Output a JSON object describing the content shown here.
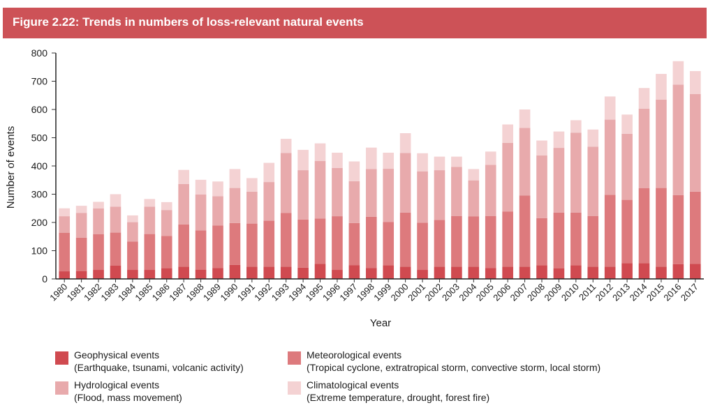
{
  "header": {
    "title": "Figure 2.22: Trends in numbers of loss-relevant natural events"
  },
  "colors": {
    "header": "#cd5257",
    "geophysical": "#d04a50",
    "meteorological": "#dd7a7d",
    "hydrological": "#e8aaac",
    "climatological": "#f4d2d3"
  },
  "chart_data": {
    "type": "bar",
    "stacked": true,
    "xlabel": "Year",
    "ylabel": "Number of events",
    "ylim": [
      0,
      800
    ],
    "yticks": [
      0,
      100,
      200,
      300,
      400,
      500,
      600,
      700,
      800
    ],
    "categories": [
      "1980",
      "1981",
      "1982",
      "1983",
      "1984",
      "1985",
      "1986",
      "1987",
      "1988",
      "1989",
      "1990",
      "1991",
      "1992",
      "1993",
      "1994",
      "1995",
      "1996",
      "1997",
      "1998",
      "1999",
      "2000",
      "2001",
      "2002",
      "2003",
      "2004",
      "2005",
      "2006",
      "2007",
      "2008",
      "2009",
      "2010",
      "2011",
      "2012",
      "2013",
      "2014",
      "2015",
      "2016",
      "2017"
    ],
    "series": [
      {
        "name": "Geophysical events",
        "color_key": "geophysical",
        "values": [
          27,
          28,
          32,
          47,
          32,
          32,
          38,
          43,
          33,
          39,
          50,
          43,
          43,
          43,
          40,
          53,
          32,
          49,
          39,
          48,
          43,
          32,
          43,
          43,
          43,
          39,
          43,
          43,
          48,
          37,
          48,
          43,
          43,
          56,
          56,
          43,
          52,
          53
        ]
      },
      {
        "name": "Meteorological events",
        "color_key": "meteorological",
        "values": [
          136,
          118,
          126,
          117,
          100,
          127,
          114,
          150,
          139,
          150,
          148,
          153,
          163,
          191,
          170,
          161,
          190,
          149,
          181,
          154,
          192,
          167,
          166,
          180,
          178,
          184,
          196,
          252,
          167,
          198,
          187,
          180,
          255,
          224,
          265,
          279,
          245,
          256
        ]
      },
      {
        "name": "Hydrological events",
        "color_key": "hydrological",
        "values": [
          59,
          88,
          92,
          92,
          69,
          97,
          92,
          143,
          127,
          104,
          124,
          113,
          137,
          212,
          175,
          204,
          171,
          148,
          169,
          188,
          211,
          182,
          176,
          174,
          128,
          181,
          243,
          240,
          222,
          229,
          283,
          245,
          266,
          234,
          282,
          313,
          391,
          346
        ]
      },
      {
        "name": "Climatological events",
        "color_key": "climatological",
        "values": [
          28,
          25,
          23,
          44,
          24,
          27,
          28,
          50,
          52,
          52,
          67,
          48,
          68,
          50,
          72,
          62,
          54,
          70,
          76,
          57,
          70,
          64,
          48,
          36,
          40,
          47,
          65,
          65,
          53,
          58,
          44,
          61,
          82,
          68,
          73,
          91,
          83,
          81
        ]
      }
    ]
  },
  "legend": [
    {
      "color_key": "geophysical",
      "title": "Geophysical events",
      "detail": "(Earthquake, tsunami, volcanic activity)"
    },
    {
      "color_key": "meteorological",
      "title": "Meteorological events",
      "detail": "(Tropical cyclone, extratropical storm, convective storm, local storm)"
    },
    {
      "color_key": "hydrological",
      "title": "Hydrological events",
      "detail": "(Flood, mass movement)"
    },
    {
      "color_key": "climatological",
      "title": "Climatological events",
      "detail": "(Extreme temperature, drought, forest fire)"
    }
  ]
}
